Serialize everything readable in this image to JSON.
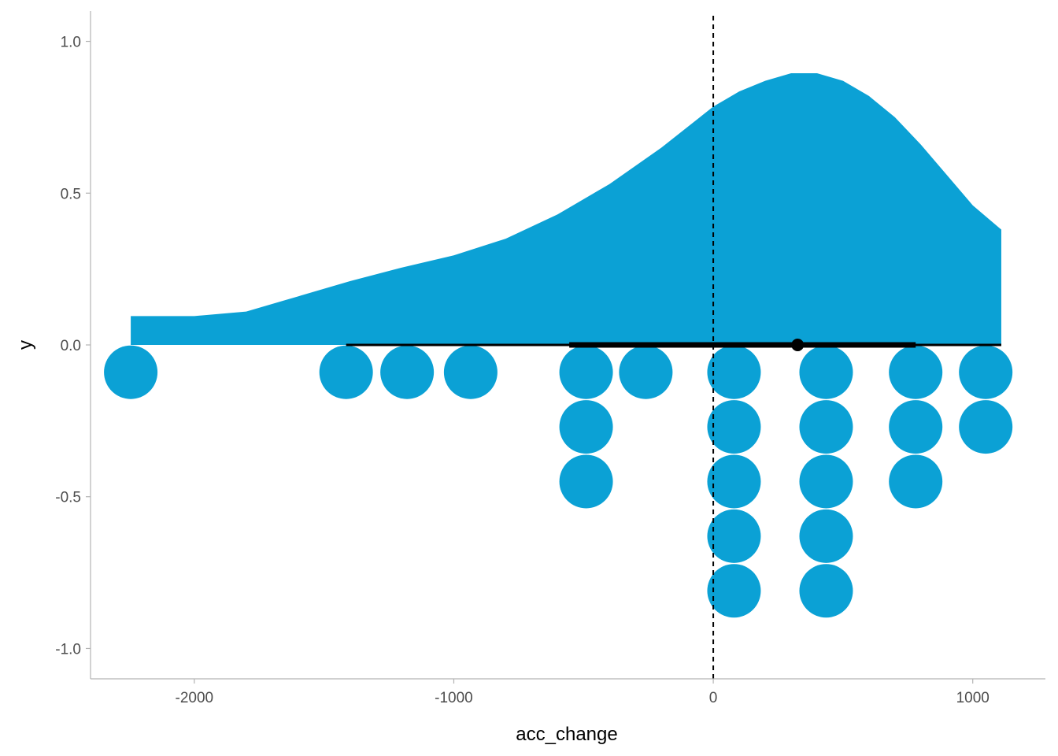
{
  "chart_data": {
    "type": "dotplot-halfeye",
    "title": "",
    "xlabel": "acc_change",
    "ylabel": "y",
    "xlim": [
      -2400,
      1280
    ],
    "ylim": [
      -1.1,
      1.1
    ],
    "x_ticks": [
      -2000,
      -1000,
      0,
      1000
    ],
    "x_tick_labels": [
      "-2000",
      "-1000",
      "0",
      "1000"
    ],
    "y_ticks": [
      1.0,
      0.5,
      0.0,
      -0.5,
      -1.0
    ],
    "y_tick_labels": [
      "1.0",
      "0.5",
      "0.0",
      "-0.5",
      "-1.0"
    ],
    "grid": false,
    "fill_color": "#0ba1d5",
    "reference_line": {
      "x": 0,
      "style": "dashed",
      "color": "#000000"
    },
    "density": {
      "x": [
        -2245,
        -2000,
        -1800,
        -1600,
        -1400,
        -1200,
        -1000,
        -800,
        -600,
        -400,
        -200,
        0,
        100,
        200,
        300,
        400,
        500,
        600,
        700,
        800,
        900,
        1000,
        1110
      ],
      "y": [
        0.095,
        0.095,
        0.11,
        0.16,
        0.21,
        0.255,
        0.295,
        0.35,
        0.43,
        0.53,
        0.65,
        0.785,
        0.835,
        0.87,
        0.895,
        0.895,
        0.87,
        0.82,
        0.75,
        0.66,
        0.56,
        0.46,
        0.38
      ]
    },
    "interval": {
      "point": 325,
      "thick": [
        -555,
        780
      ],
      "thin": [
        -1415,
        1110
      ]
    },
    "dots": {
      "x": [
        -2245,
        -1415,
        -1180,
        -935,
        -490,
        -490,
        -490,
        -260,
        80,
        80,
        80,
        80,
        80,
        435,
        435,
        435,
        435,
        435,
        780,
        780,
        780,
        1050,
        1050
      ],
      "y": [
        -0.09,
        -0.09,
        -0.09,
        -0.09,
        -0.09,
        -0.27,
        -0.45,
        -0.09,
        -0.09,
        -0.27,
        -0.45,
        -0.63,
        -0.81,
        -0.09,
        -0.27,
        -0.45,
        -0.63,
        -0.81,
        -0.09,
        -0.27,
        -0.45,
        -0.09,
        -0.27
      ]
    }
  }
}
